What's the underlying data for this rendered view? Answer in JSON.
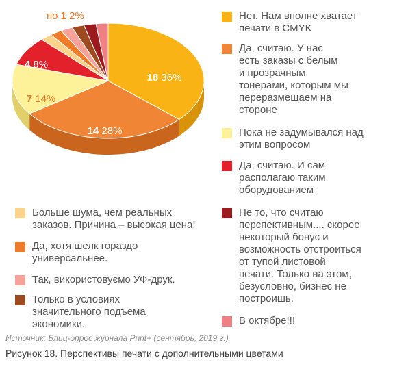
{
  "chart_data": {
    "type": "pie",
    "title": "",
    "slices": [
      {
        "count": "18",
        "percent": "36%",
        "value": 36,
        "color": "#F9B315",
        "side": "#D9930A",
        "label": "Нет. Нам вполне хватает\nпечати в CMYK"
      },
      {
        "count": "14",
        "percent": "28%",
        "value": 28,
        "color": "#F08535",
        "side": "#C9651D",
        "label": "Да, считаю. У нас\nесть заказы с белым\nи прозрачным\nтонерами, которым мы\nпереразмещаем на\nстороне"
      },
      {
        "count": "7",
        "percent": "14%",
        "value": 14,
        "color": "#FDF199",
        "side": "#E1D06A",
        "label": "Пока не задумывался над\nэтим вопросом"
      },
      {
        "count": "4",
        "percent": "8%",
        "value": 8,
        "color": "#E2212B",
        "side": "#B0141C",
        "label": "Да, считаю. И сам\nрасполагаю таким\nоборудованием"
      },
      {
        "count": "",
        "percent": "",
        "value": 2,
        "color": "#FCD38A",
        "side": "#DDB066",
        "label": "Больше шума, чем реальных\nзаказов. Причина – высокая цена!"
      },
      {
        "count": "",
        "percent": "",
        "value": 2,
        "color": "#EE7C2A",
        "side": "#C55E15",
        "label": "Да, хотя шелк гораздо\nуниверсальнее."
      },
      {
        "count": "",
        "percent": "",
        "value": 2,
        "color": "#F5A39A",
        "side": "#D47F77",
        "label": "Так, використовуємо УФ-друк."
      },
      {
        "count": "",
        "percent": "",
        "value": 2,
        "color": "#9E4A21",
        "side": "#783312",
        "label": "Только в условиях\nзначительного подъема\nэкономики."
      },
      {
        "count": "",
        "percent": "",
        "value": 2,
        "color": "#9B1B1E",
        "side": "#711012",
        "label": "Не то, что считаю\nперспективным.... скорее\nнекоторый бонус и\nвозможность отстроиться\nот тупой листовой\nпечати. Только на этом,\nбезусловно, бизнес не\nпостроишь."
      },
      {
        "count": "",
        "percent": "",
        "value": 2,
        "color": "#EE7F82",
        "side": "#C95D60",
        "label": "В октябре!!!"
      }
    ],
    "small_slice_note": {
      "prefix": "по ",
      "count": "1",
      "percent": "2%"
    }
  },
  "source": "Источник: Блиц-опрос журнала Print+ (сентябрь, 2019 г.)",
  "caption": "Рисунок 18. Перспективы печати с дополнительными цветами"
}
